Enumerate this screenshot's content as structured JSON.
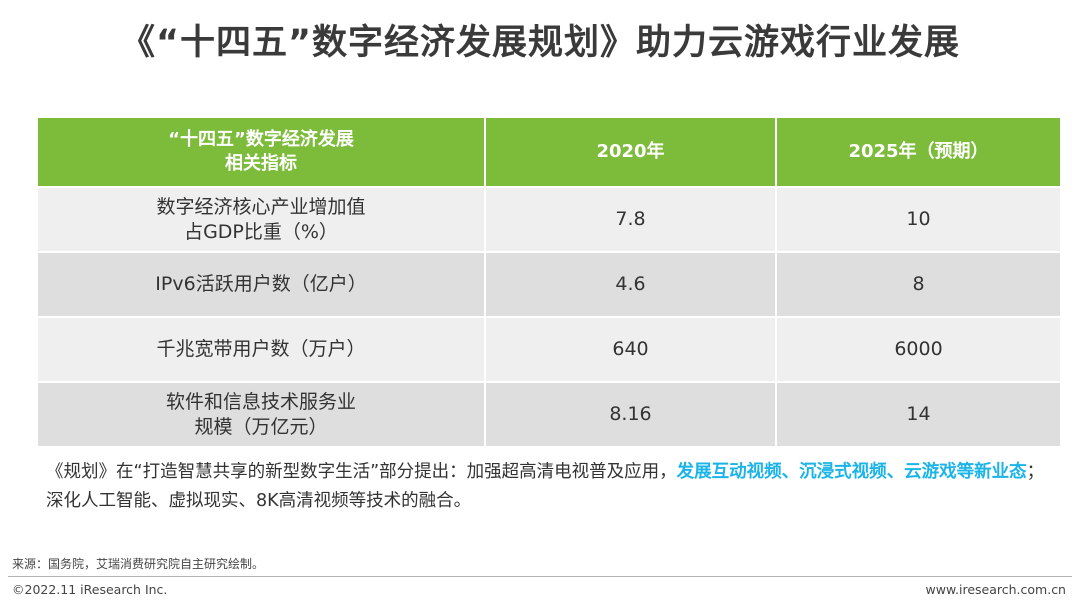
{
  "title": "《“十四五”数字经济发展规划》助力云游戏行业发展",
  "table": {
    "headers": [
      "“十四五”数字经济发展\n相关指标",
      "2020年",
      "2025年（预期）"
    ],
    "rows": [
      {
        "label": "数字经济核心产业增加值\n占GDP比重（%）",
        "v2020": "7.8",
        "v2025": "10"
      },
      {
        "label": "IPv6活跃用户数（亿户）",
        "v2020": "4.6",
        "v2025": "8"
      },
      {
        "label": "千兆宽带用户数（万户）",
        "v2020": "640",
        "v2025": "6000"
      },
      {
        "label": "软件和信息技术服务业\n规模（万亿元）",
        "v2020": "8.16",
        "v2025": "14"
      }
    ]
  },
  "note": {
    "part1": "《规划》在“打造智慧共享的新型数字生活”部分提出：加强超高清电视普及应用，",
    "highlight": "发展互动视频、沉浸式视频、云游戏等新业态",
    "part2": "；深化人工智能、虚拟现实、8K高清视频等技术的融合。"
  },
  "footer": {
    "source": "来源：国务院，艾瑞消费研究院自主研究绘制。",
    "copyright": "©2022.11 iResearch Inc.",
    "website": "www.iresearch.com.cn"
  },
  "colors": {
    "header_bg": "#7dbb3a",
    "row_light": "#efefef",
    "row_dark": "#dedede",
    "highlight": "#1bb4e8"
  },
  "chart_data": {
    "type": "table",
    "columns": [
      "“十四五”数字经济发展相关指标",
      "2020年",
      "2025年（预期）"
    ],
    "rows": [
      [
        "数字经济核心产业增加值占GDP比重（%）",
        7.8,
        10
      ],
      [
        "IPv6活跃用户数（亿户）",
        4.6,
        8
      ],
      [
        "千兆宽带用户数（万户）",
        640,
        6000
      ],
      [
        "软件和信息技术服务业规模（万亿元）",
        8.16,
        14
      ]
    ]
  }
}
